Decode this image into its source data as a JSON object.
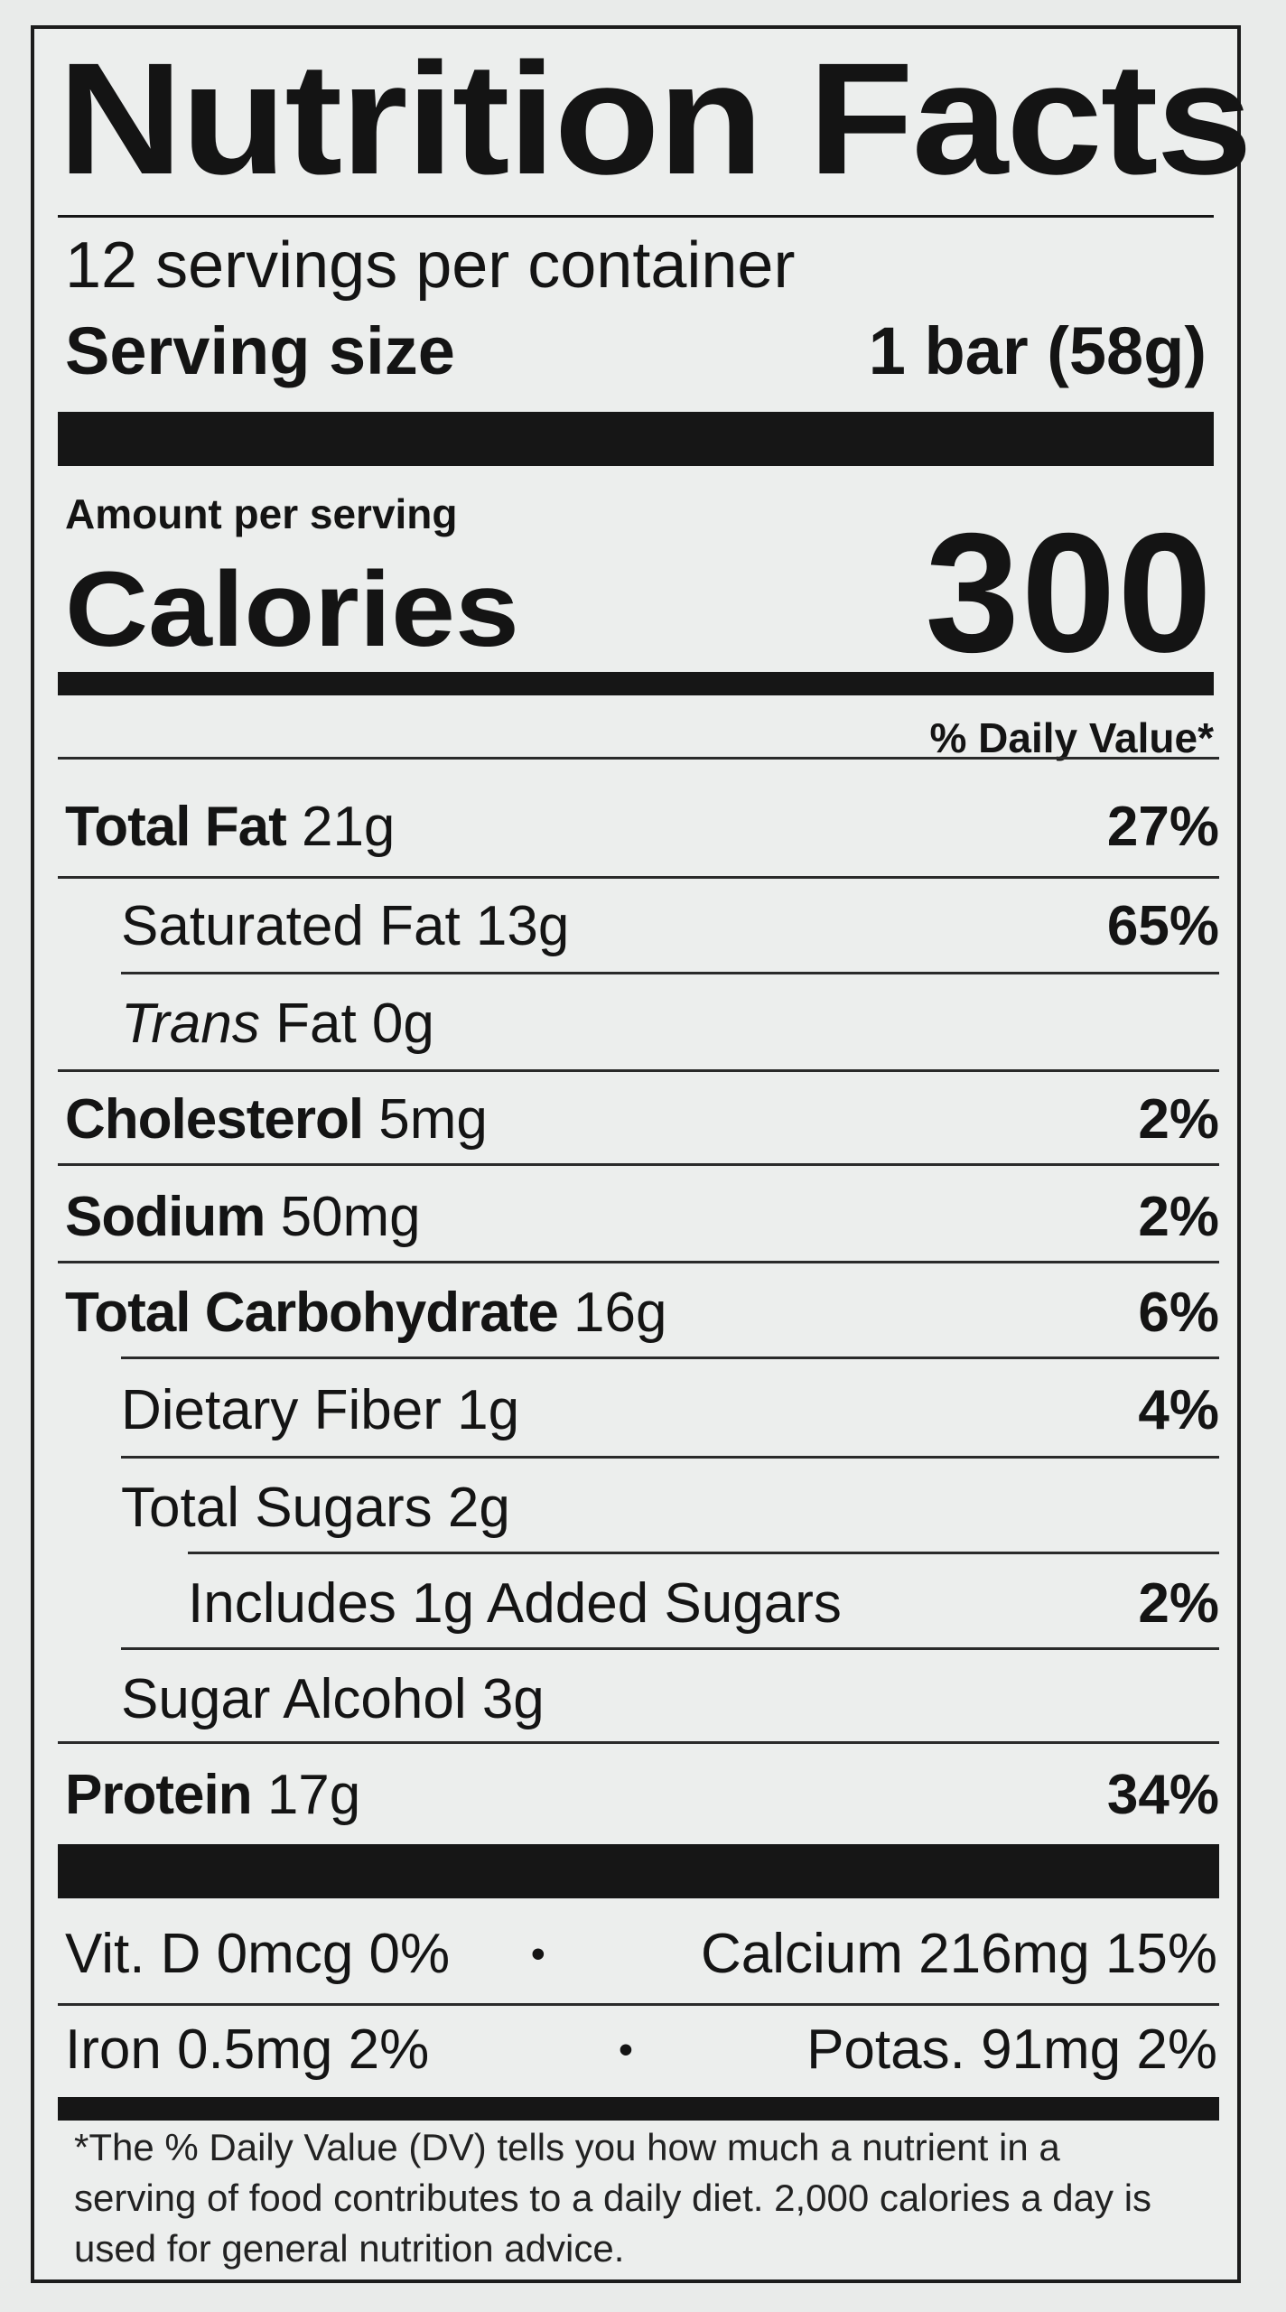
{
  "title": "Nutrition Facts",
  "servings_per_container": "12 servings per container",
  "serving_size": {
    "label": "Serving size",
    "value": "1 bar (58g)"
  },
  "amount_per_serving": "Amount per serving",
  "calories": {
    "label": "Calories",
    "value": "300"
  },
  "daily_value_header": "% Daily Value*",
  "nutrients": [
    {
      "name": "Total Fat",
      "amount": "21g",
      "dv": "27%"
    },
    {
      "name": "",
      "amount": "Saturated Fat 13g",
      "dv": "65%"
    },
    {
      "name": "",
      "amount_italic": "Trans",
      "amount": "Fat 0g",
      "dv": ""
    },
    {
      "name": "Cholesterol",
      "amount": "5mg",
      "dv": "2%"
    },
    {
      "name": "Sodium",
      "amount": "50mg",
      "dv": "2%"
    },
    {
      "name": "Total Carbohydrate",
      "amount": "16g",
      "dv": "6%"
    },
    {
      "name": "",
      "amount": "Dietary Fiber 1g",
      "dv": "4%"
    },
    {
      "name": "",
      "amount": "Total Sugars 2g",
      "dv": ""
    },
    {
      "name": "",
      "amount": "Includes 1g Added Sugars",
      "dv": "2%"
    },
    {
      "name": "",
      "amount": "Sugar Alcohol 3g",
      "dv": ""
    },
    {
      "name": "Protein",
      "amount": "17g",
      "dv": "34%"
    }
  ],
  "vitamins": [
    {
      "left": "Vit. D 0mcg 0%",
      "separator": "•",
      "right": "Calcium 216mg 15%"
    },
    {
      "left": "Iron 0.5mg 2%",
      "separator": "•",
      "right": "Potas. 91mg 2%"
    }
  ],
  "footnote": "*The % Daily Value (DV) tells you how much a nutrient in a serving of food contributes to a daily diet. 2,000 calories a day is used for general nutrition advice."
}
